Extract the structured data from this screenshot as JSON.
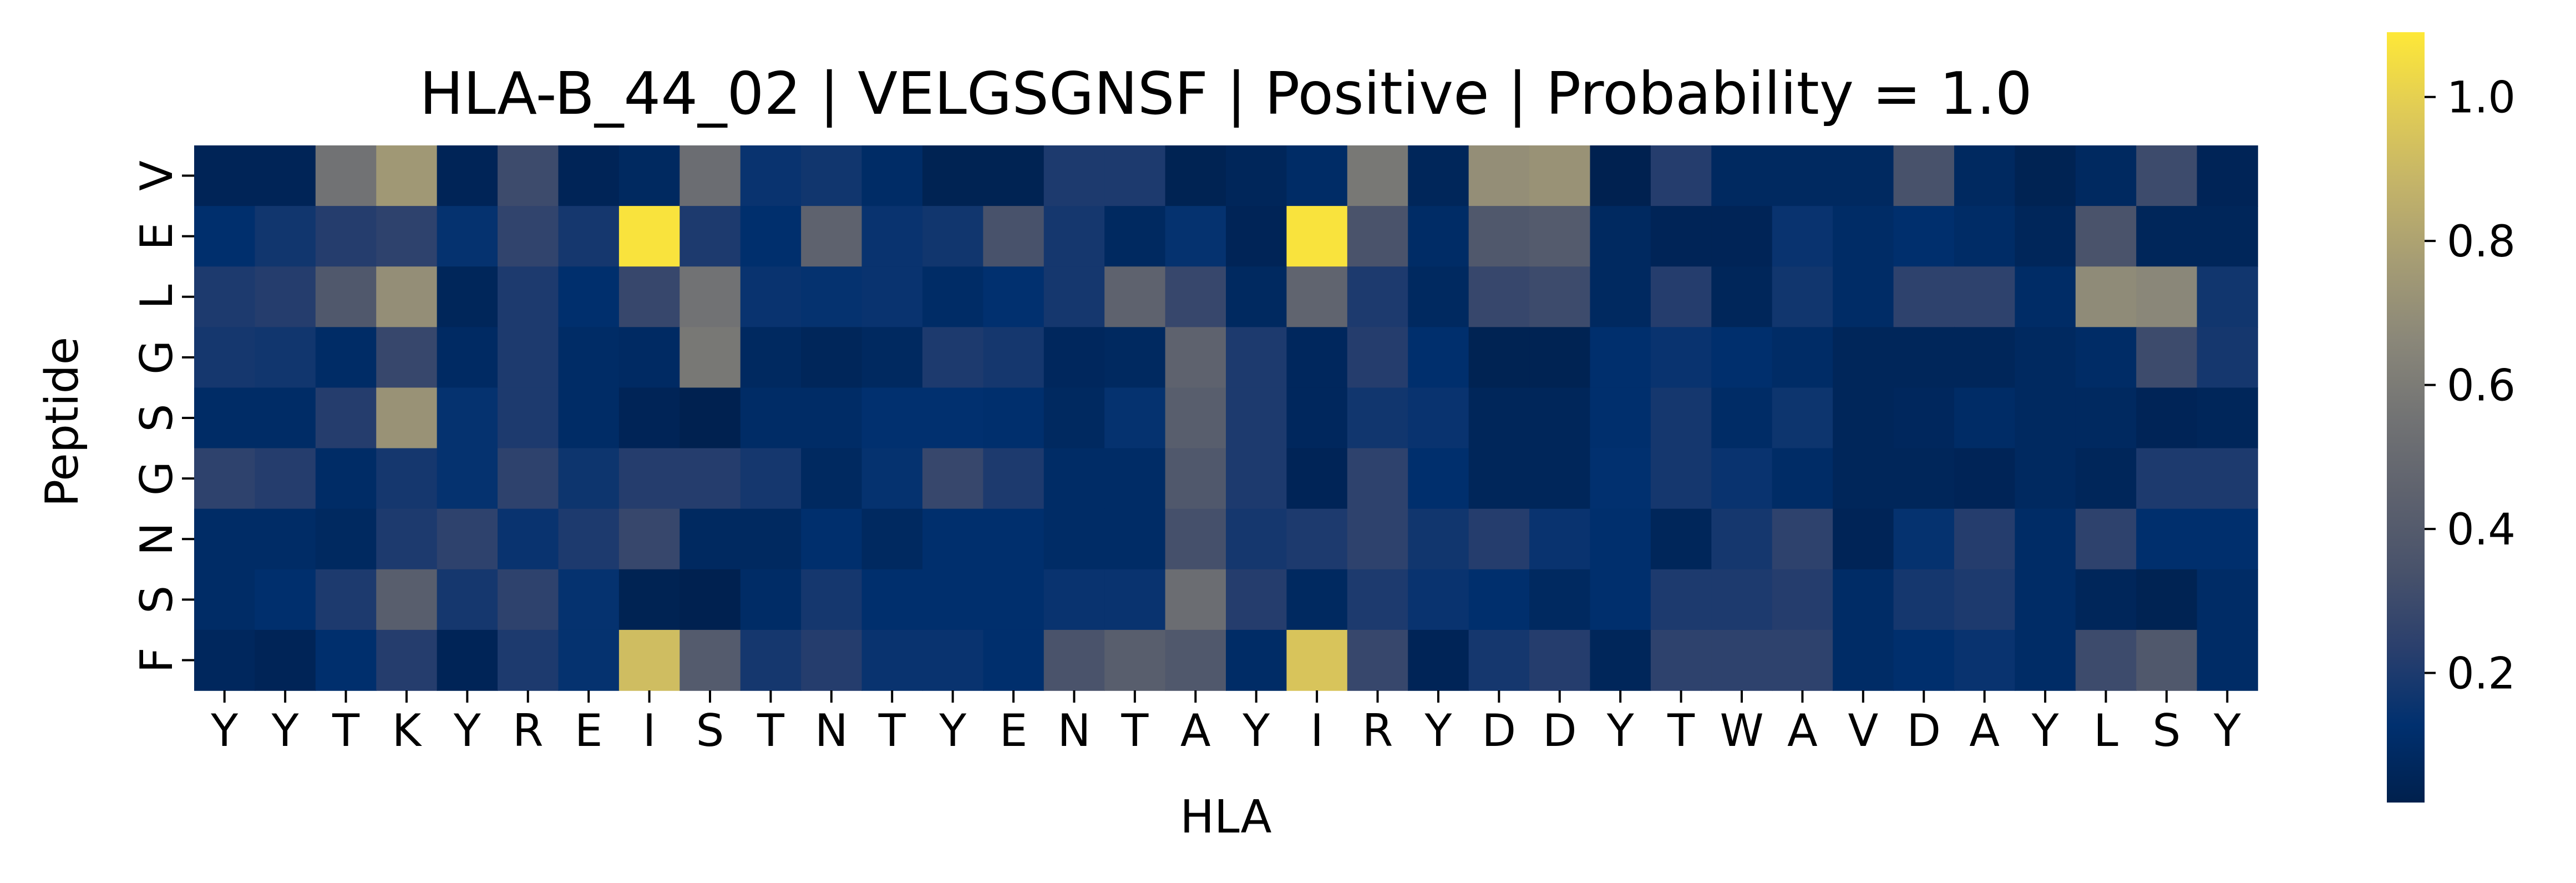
{
  "chart_data": {
    "type": "heatmap",
    "title": "HLA-B_44_02 | VELGSGNSF | Positive | Probability = 1.0",
    "xlabel": "HLA",
    "ylabel": "Peptide",
    "x_labels": [
      "Y",
      "Y",
      "T",
      "K",
      "Y",
      "R",
      "E",
      "I",
      "S",
      "T",
      "N",
      "T",
      "Y",
      "E",
      "N",
      "T",
      "A",
      "Y",
      "I",
      "R",
      "Y",
      "D",
      "D",
      "Y",
      "T",
      "W",
      "A",
      "V",
      "D",
      "A",
      "Y",
      "L",
      "S",
      "Y"
    ],
    "y_labels": [
      "V",
      "E",
      "L",
      "G",
      "S",
      "G",
      "N",
      "S",
      "F"
    ],
    "colormap": "cividis",
    "colorbar": {
      "min": 0.02,
      "max": 1.09,
      "ticks": [
        0.2,
        0.4,
        0.6,
        0.8,
        1.0
      ],
      "tick_labels": [
        "0.2",
        "0.4",
        "0.6",
        "0.8",
        "1.0"
      ]
    },
    "values": [
      [
        0.05,
        0.05,
        0.55,
        0.75,
        0.05,
        0.3,
        0.05,
        0.08,
        0.52,
        0.15,
        0.17,
        0.1,
        0.04,
        0.04,
        0.2,
        0.2,
        0.04,
        0.06,
        0.1,
        0.58,
        0.06,
        0.7,
        0.72,
        0.03,
        0.22,
        0.08,
        0.08,
        0.08,
        0.34,
        0.08,
        0.04,
        0.08,
        0.3,
        0.05
      ],
      [
        0.12,
        0.17,
        0.22,
        0.25,
        0.14,
        0.26,
        0.18,
        1.07,
        0.2,
        0.12,
        0.45,
        0.15,
        0.17,
        0.34,
        0.18,
        0.08,
        0.14,
        0.05,
        1.07,
        0.35,
        0.1,
        0.38,
        0.4,
        0.08,
        0.05,
        0.05,
        0.15,
        0.1,
        0.12,
        0.1,
        0.06,
        0.35,
        0.06,
        0.06
      ],
      [
        0.2,
        0.22,
        0.38,
        0.7,
        0.06,
        0.2,
        0.12,
        0.28,
        0.55,
        0.15,
        0.14,
        0.15,
        0.1,
        0.13,
        0.18,
        0.45,
        0.28,
        0.08,
        0.46,
        0.2,
        0.08,
        0.28,
        0.3,
        0.08,
        0.22,
        0.06,
        0.17,
        0.1,
        0.25,
        0.25,
        0.1,
        0.68,
        0.66,
        0.17
      ],
      [
        0.18,
        0.17,
        0.1,
        0.28,
        0.09,
        0.2,
        0.1,
        0.09,
        0.58,
        0.08,
        0.06,
        0.08,
        0.2,
        0.18,
        0.07,
        0.08,
        0.45,
        0.2,
        0.07,
        0.22,
        0.12,
        0.04,
        0.04,
        0.12,
        0.15,
        0.12,
        0.1,
        0.06,
        0.06,
        0.06,
        0.08,
        0.1,
        0.3,
        0.18
      ],
      [
        0.1,
        0.1,
        0.22,
        0.72,
        0.14,
        0.2,
        0.1,
        0.05,
        0.03,
        0.1,
        0.1,
        0.13,
        0.13,
        0.12,
        0.08,
        0.14,
        0.42,
        0.2,
        0.07,
        0.17,
        0.15,
        0.06,
        0.06,
        0.12,
        0.18,
        0.1,
        0.16,
        0.06,
        0.07,
        0.1,
        0.08,
        0.08,
        0.05,
        0.06
      ],
      [
        0.25,
        0.22,
        0.1,
        0.18,
        0.14,
        0.25,
        0.16,
        0.22,
        0.22,
        0.18,
        0.08,
        0.14,
        0.28,
        0.2,
        0.1,
        0.1,
        0.38,
        0.2,
        0.05,
        0.25,
        0.12,
        0.06,
        0.06,
        0.13,
        0.18,
        0.15,
        0.1,
        0.06,
        0.06,
        0.05,
        0.08,
        0.06,
        0.2,
        0.2
      ],
      [
        0.1,
        0.1,
        0.08,
        0.2,
        0.25,
        0.15,
        0.2,
        0.28,
        0.08,
        0.08,
        0.12,
        0.08,
        0.12,
        0.12,
        0.1,
        0.1,
        0.33,
        0.18,
        0.2,
        0.25,
        0.17,
        0.22,
        0.15,
        0.12,
        0.06,
        0.18,
        0.25,
        0.05,
        0.14,
        0.22,
        0.1,
        0.25,
        0.12,
        0.12
      ],
      [
        0.1,
        0.12,
        0.2,
        0.42,
        0.18,
        0.25,
        0.14,
        0.04,
        0.03,
        0.1,
        0.18,
        0.12,
        0.12,
        0.12,
        0.15,
        0.15,
        0.52,
        0.22,
        0.08,
        0.2,
        0.15,
        0.12,
        0.08,
        0.12,
        0.2,
        0.2,
        0.22,
        0.1,
        0.18,
        0.2,
        0.1,
        0.06,
        0.04,
        0.1
      ],
      [
        0.07,
        0.05,
        0.12,
        0.22,
        0.05,
        0.2,
        0.14,
        0.92,
        0.4,
        0.18,
        0.22,
        0.15,
        0.15,
        0.12,
        0.35,
        0.42,
        0.38,
        0.1,
        0.95,
        0.28,
        0.05,
        0.18,
        0.22,
        0.06,
        0.25,
        0.25,
        0.25,
        0.1,
        0.12,
        0.15,
        0.1,
        0.3,
        0.38,
        0.1
      ]
    ]
  }
}
